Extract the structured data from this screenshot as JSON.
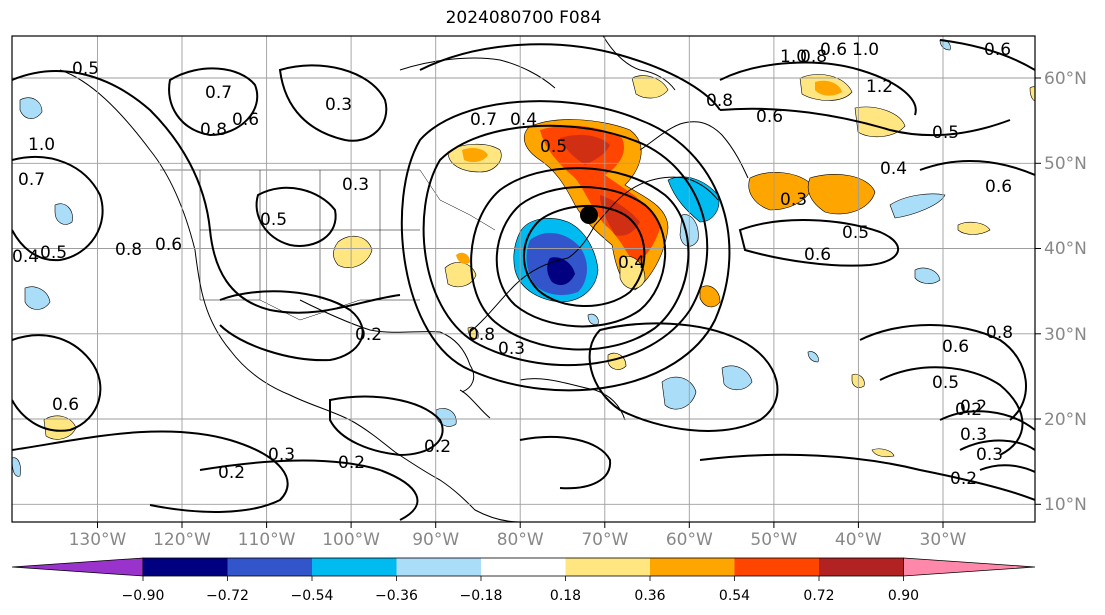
{
  "title": "2024080700 F084",
  "map": {
    "lon_ticks": [
      "130°W",
      "120°W",
      "110°W",
      "100°W",
      "90°W",
      "80°W",
      "70°W",
      "60°W",
      "50°W",
      "40°W",
      "30°W"
    ],
    "lat_ticks": [
      "60°N",
      "50°N",
      "40°N",
      "30°N",
      "20°N",
      "10°N"
    ],
    "lon_range": [
      -136,
      -15
    ],
    "lat_range": [
      7,
      64
    ],
    "grid": true,
    "storm_marker": "storm-center-dot"
  },
  "colorbar": {
    "ticks": [
      "−0.90",
      "−0.72",
      "−0.54",
      "−0.36",
      "−0.18",
      "0.18",
      "0.36",
      "0.54",
      "0.72",
      "0.90"
    ],
    "colors": [
      "#9933cc",
      "#000080",
      "#3355cc",
      "#00bbf0",
      "#aaddf8",
      "#ffffff",
      "#ffe680",
      "#ffa500",
      "#ff4500",
      "#b22222",
      "#ff88aa"
    ]
  },
  "contour_labels": [
    "0.5",
    "0.7",
    "0.8",
    "0.6",
    "0.3",
    "0.8",
    "1.0",
    "1.2",
    "0.6",
    "0.8",
    "0.6",
    "0.5",
    "0.4",
    "0.5",
    "0.3",
    "0.6",
    "0.5",
    "0.6",
    "0.4",
    "1.0",
    "0.7",
    "0.4",
    "0.5",
    "0.8",
    "0.6",
    "0.3",
    "0.5",
    "0.2",
    "0.3",
    "0.8",
    "0.4",
    "0.2",
    "0.3",
    "0.2",
    "0.2",
    "0.3",
    "0.2",
    "0.6",
    "0.6",
    "0.5",
    "0.8",
    "0.2",
    "0.3",
    "0.2",
    "0.6",
    "1.0",
    "0.7"
  ]
}
